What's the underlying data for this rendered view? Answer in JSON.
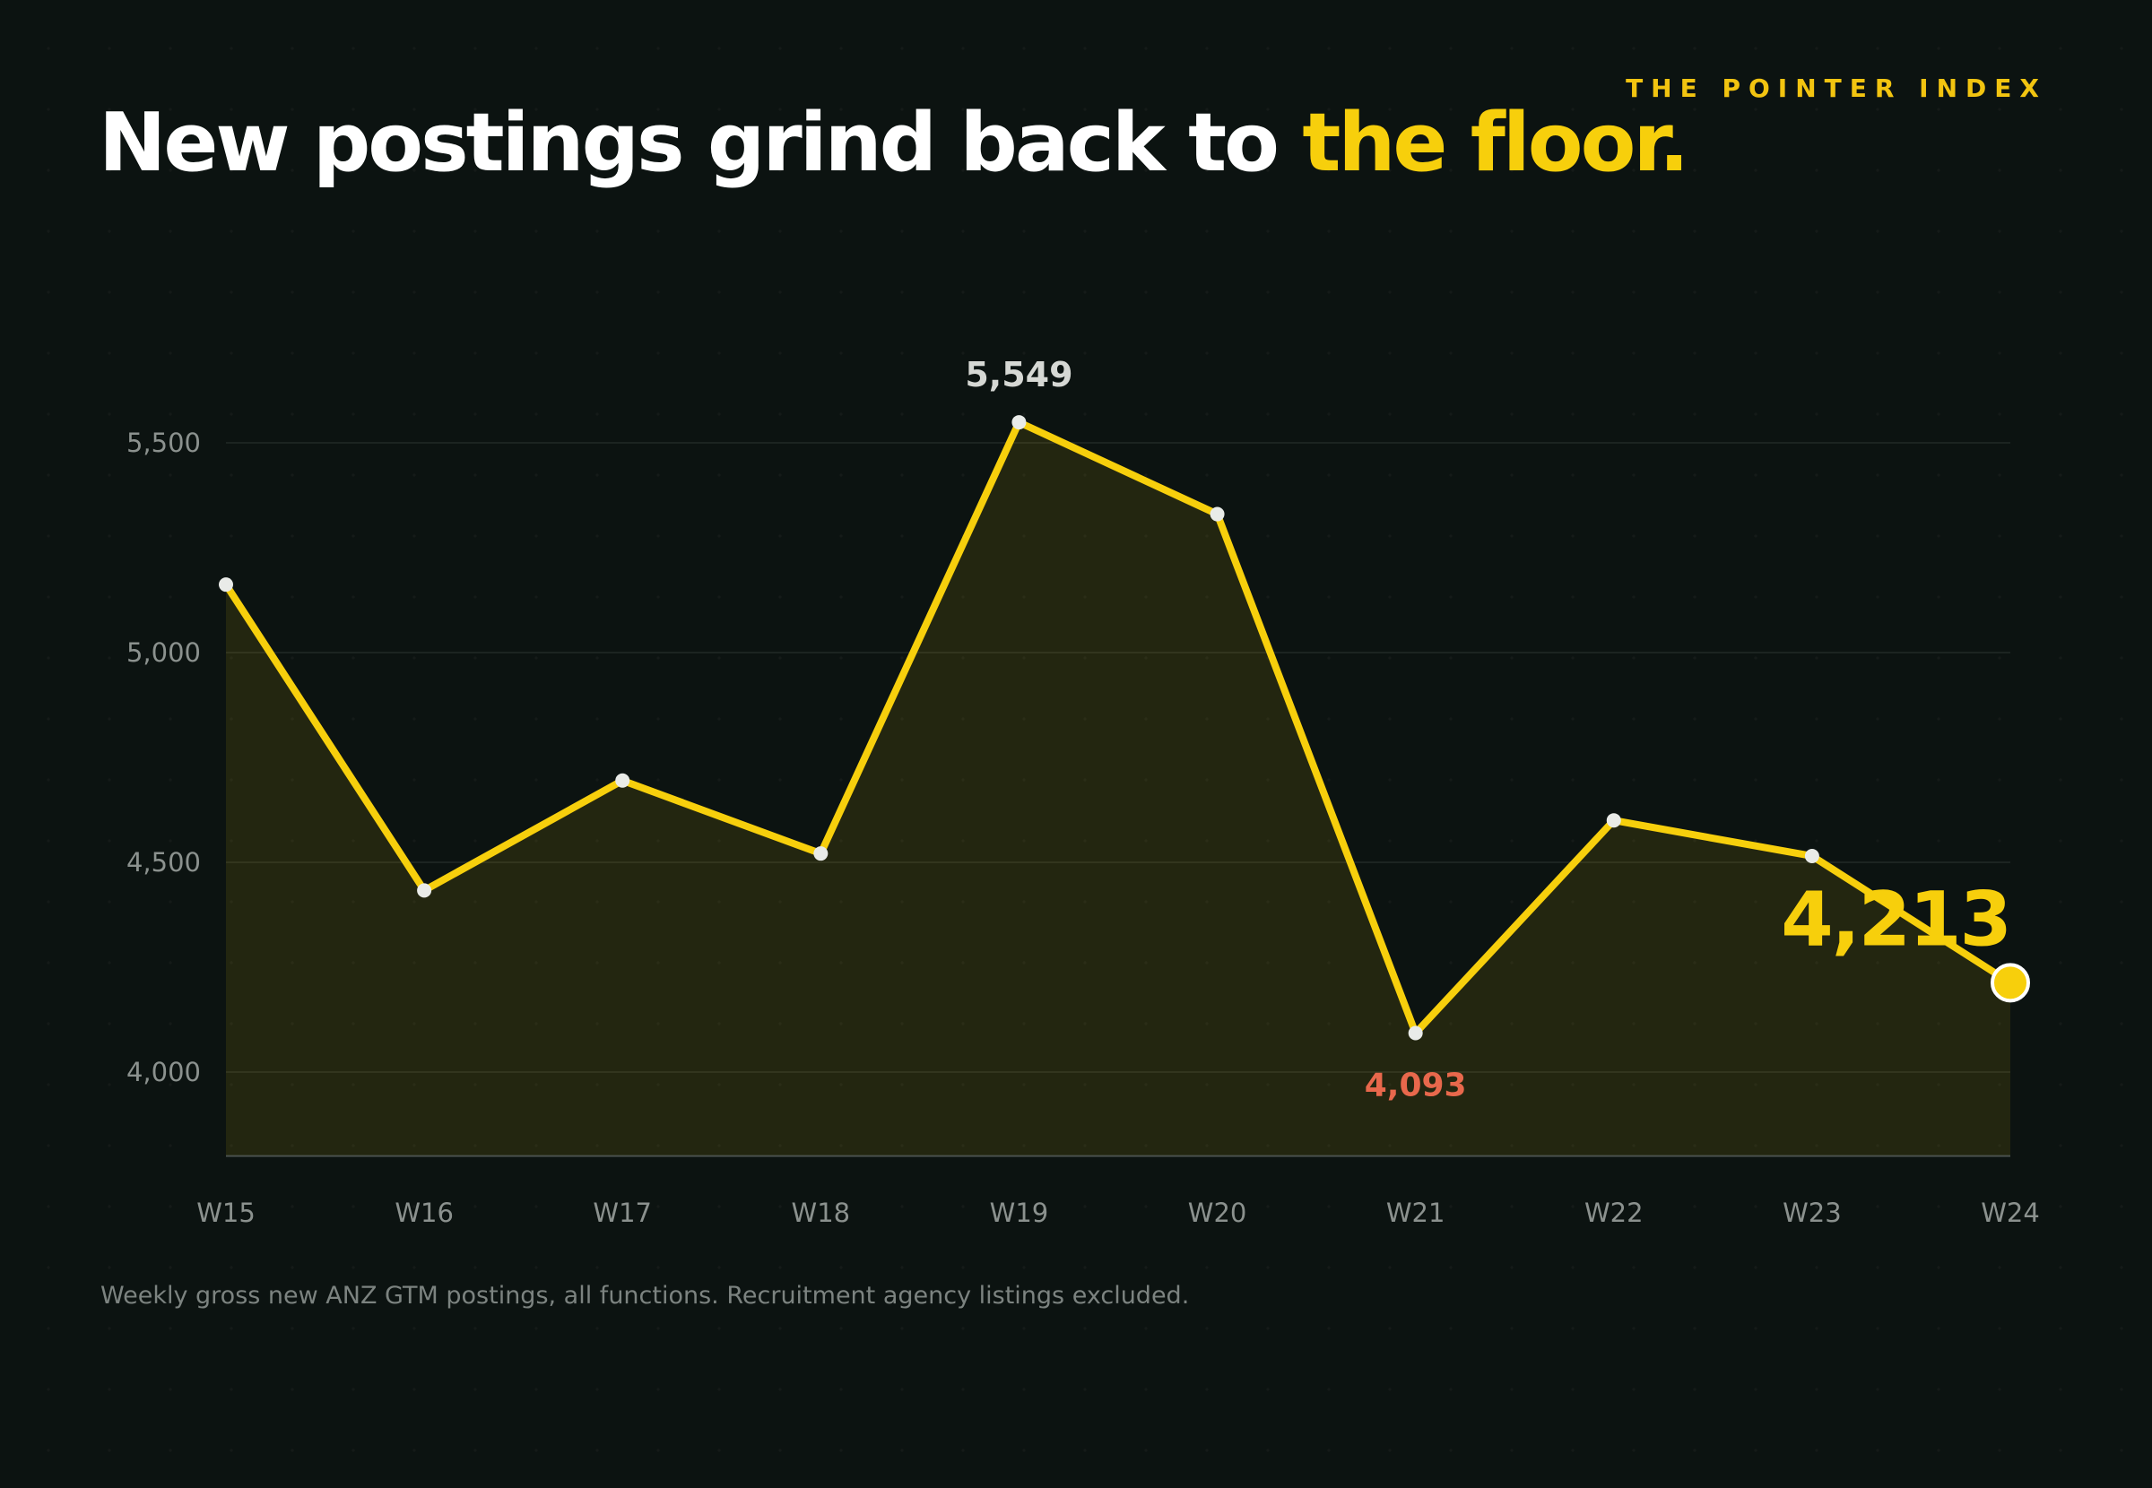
{
  "brand": "THE POINTER INDEX",
  "title": {
    "main": "New postings grind back to ",
    "accent": "the floor."
  },
  "footnote": "Weekly gross new ANZ GTM postings, all functions. Recruitment agency listings excluded.",
  "colors": {
    "line": "#f7cf0c",
    "area": "#f7cf0c",
    "point": "#e9ebe8",
    "peak_label": "#d6d8d4",
    "low_label": "#e8684c",
    "grid": "#1c2421",
    "axis": "#4a504d"
  },
  "chart_data": {
    "type": "line",
    "categories": [
      "W15",
      "W16",
      "W17",
      "W18",
      "W19",
      "W20",
      "W21",
      "W22",
      "W23",
      "W24"
    ],
    "series": [
      {
        "values": [
          5162,
          4433,
          4695,
          4521,
          5549,
          5330,
          4093,
          4600,
          4515,
          4213
        ]
      }
    ],
    "yticks": [
      4000,
      4500,
      5000,
      5500
    ],
    "ytick_labels": [
      "4,000",
      "4,500",
      "5,000",
      "5,500"
    ],
    "ylim": [
      3800,
      5550
    ],
    "annotations": [
      {
        "category": "W19",
        "text": "5,549",
        "kind": "peak"
      },
      {
        "category": "W21",
        "text": "4,093",
        "kind": "low"
      },
      {
        "category": "W24",
        "text": "4,213",
        "kind": "last"
      }
    ],
    "area_fill": true,
    "grid": true,
    "legend": "none"
  }
}
